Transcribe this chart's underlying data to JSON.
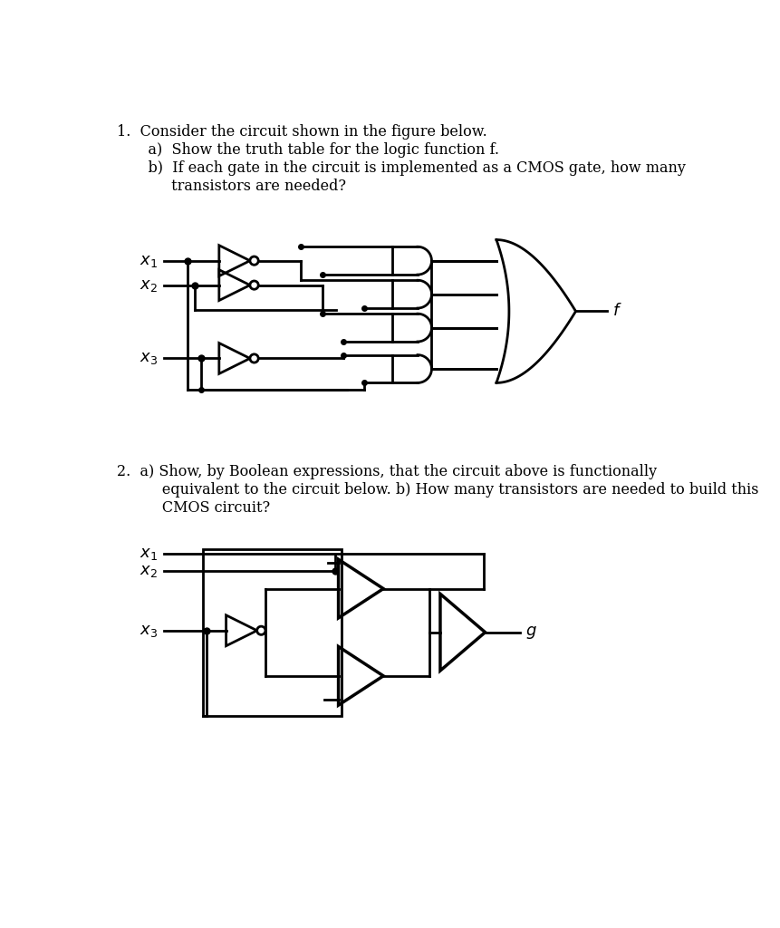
{
  "bg_color": "#ffffff",
  "text_color": "#000000",
  "lw": 2.0,
  "lw_thin": 1.5,
  "fs_text": 11.5,
  "fs_label": 13,
  "q1_lines": [
    "1.  Consider the circuit shown in the figure below.",
    "    a)  Show the truth table for the logic function f.",
    "    b)  If each gate in the circuit is implemented as a CMOS gate, how many",
    "         transistors are needed?"
  ],
  "q2_lines": [
    "2.  a) Show, by Boolean expressions, that the circuit above is functionally",
    "       equivalent to the circuit below. b) How many transistors are needed to build this",
    "       CMOS circuit?"
  ]
}
